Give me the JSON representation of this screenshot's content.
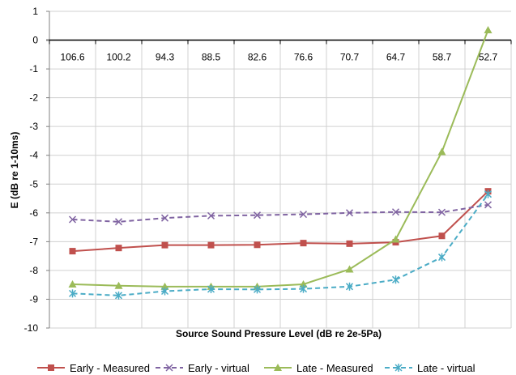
{
  "chart_data": {
    "type": "line",
    "title": "",
    "xlabel": "Source Sound Pressure Level (dB re 2e-5Pa)",
    "ylabel": "E (dB re 1-10ms)",
    "ylim": [
      -10,
      1
    ],
    "yticks": [
      "1",
      "0",
      "-1",
      "-2",
      "-3",
      "-4",
      "-5",
      "-6",
      "-7",
      "-8",
      "-9",
      "-10"
    ],
    "categories": [
      "106.6",
      "100.2",
      "94.3",
      "88.5",
      "82.6",
      "76.6",
      "70.7",
      "64.7",
      "58.7",
      "52.7"
    ],
    "grid": true,
    "legend_position": "bottom",
    "series": [
      {
        "name": "Early - Measured",
        "color": "#c0504d",
        "dash": "solid",
        "marker": "square",
        "values": [
          -7.33,
          -7.22,
          -7.12,
          -7.12,
          -7.11,
          -7.05,
          -7.07,
          -7.02,
          -6.8,
          -5.25
        ]
      },
      {
        "name": "Early - virtual",
        "color": "#8064a2",
        "dash": "dashed",
        "marker": "x",
        "values": [
          -6.23,
          -6.31,
          -6.18,
          -6.1,
          -6.08,
          -6.05,
          -6.0,
          -5.97,
          -5.98,
          -5.72
        ]
      },
      {
        "name": "Late - Measured",
        "color": "#9bbb59",
        "dash": "solid",
        "marker": "triangle",
        "values": [
          -8.48,
          -8.53,
          -8.56,
          -8.56,
          -8.56,
          -8.48,
          -7.96,
          -6.92,
          -3.88,
          0.35
        ]
      },
      {
        "name": "Late - virtual",
        "color": "#4bacc6",
        "dash": "dashed",
        "marker": "asterisk",
        "values": [
          -8.8,
          -8.87,
          -8.72,
          -8.65,
          -8.66,
          -8.64,
          -8.56,
          -8.32,
          -7.54,
          -5.35
        ]
      }
    ]
  }
}
